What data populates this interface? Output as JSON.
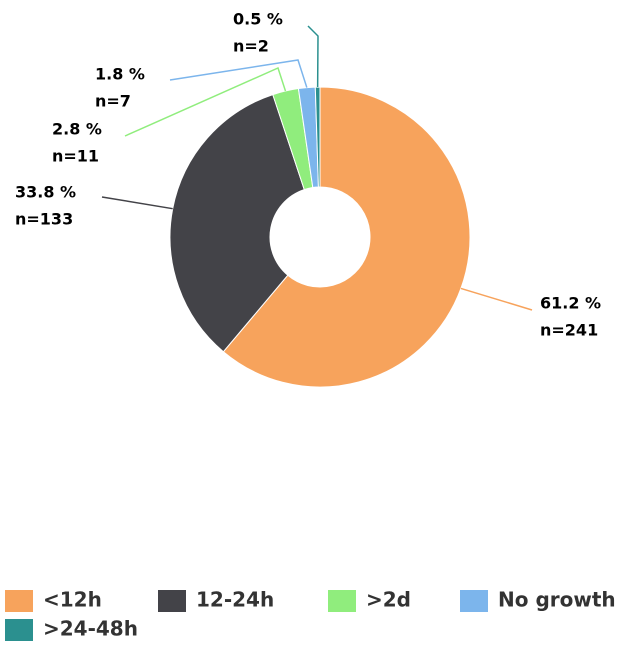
{
  "chart_data": {
    "type": "pie",
    "categories": [
      "<12h",
      "12-24h",
      ">2d",
      "No growth",
      ">24-48h"
    ],
    "values": [
      61.2,
      33.8,
      2.8,
      1.8,
      0.5
    ],
    "value_labels": [
      "61.2 %",
      "33.8 %",
      "2.8 %",
      "1.8 %",
      "0.5 %"
    ],
    "counts": [
      241,
      133,
      11,
      7,
      2
    ],
    "count_labels": [
      "n=241",
      "n=133",
      "n=11",
      "n=7",
      "n=2"
    ],
    "colors": [
      "#f7a35c",
      "#434348",
      "#90ed7d",
      "#7cb5ec",
      "#2b908f"
    ],
    "legend": "bottom"
  }
}
